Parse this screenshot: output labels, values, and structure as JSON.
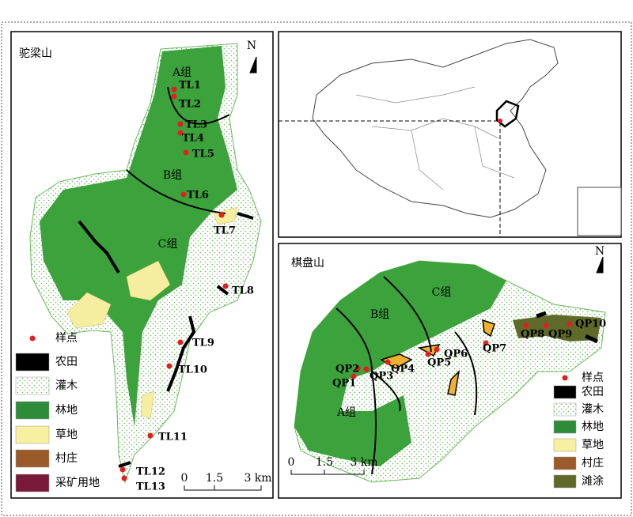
{
  "left_map": {
    "title": "驼梁山",
    "north": "N",
    "zones": [
      "A组",
      "B组",
      "C组"
    ],
    "sites": [
      "TL1",
      "TL2",
      "TL3",
      "TL4",
      "TL5",
      "TL6",
      "TL7",
      "TL8",
      "TL9",
      "TL10",
      "TL11",
      "TL12",
      "TL13"
    ],
    "legend": [
      "样点",
      "农田",
      "灌木",
      "林地",
      "草地",
      "村庄",
      "采矿用地"
    ],
    "scale": [
      "0",
      "1.5",
      "3 km"
    ]
  },
  "right_map": {
    "title": "棋盘山",
    "north": "N",
    "zones": [
      "A组",
      "B组",
      "C组"
    ],
    "sites": [
      "QP1",
      "QP2",
      "QP3",
      "QP4",
      "QP5",
      "QP6",
      "QP7",
      "QP8",
      "QP9",
      "QP10"
    ],
    "legend": [
      "样点",
      "农田",
      "灌木",
      "林地",
      "草地",
      "村庄",
      "滩涂"
    ],
    "scale": [
      "0",
      "1.5",
      "3 km"
    ]
  }
}
